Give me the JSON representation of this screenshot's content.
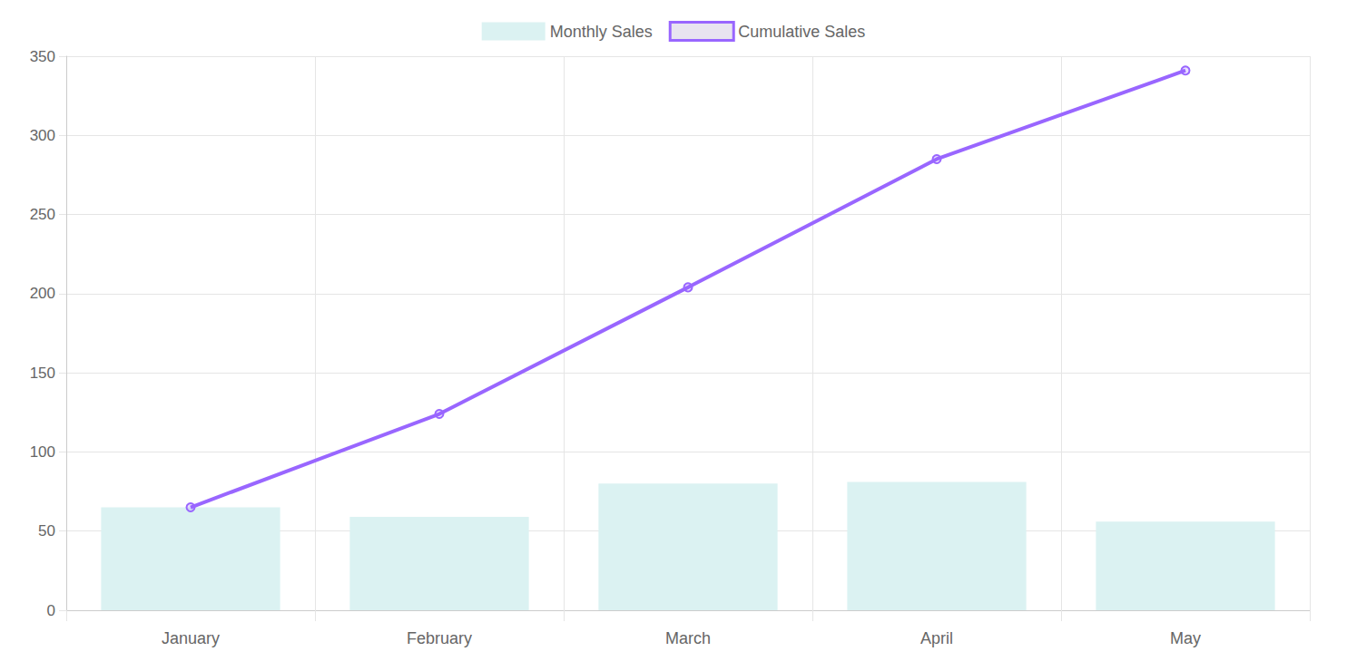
{
  "chart_data": {
    "type": "combo",
    "categories": [
      "January",
      "February",
      "March",
      "April",
      "May"
    ],
    "series": [
      {
        "name": "Monthly Sales",
        "type": "bar",
        "color": "#dbf2f2",
        "values": [
          65,
          59,
          80,
          81,
          56
        ]
      },
      {
        "name": "Cumulative Sales",
        "type": "line",
        "color": "#9966ff",
        "marker": "circle",
        "line_style": "solid",
        "values": [
          65,
          124,
          204,
          285,
          341
        ]
      }
    ],
    "ylim": [
      0,
      350
    ],
    "yticks": [
      0,
      50,
      100,
      150,
      200,
      250,
      300,
      350
    ],
    "grid": true,
    "legend": "top"
  }
}
